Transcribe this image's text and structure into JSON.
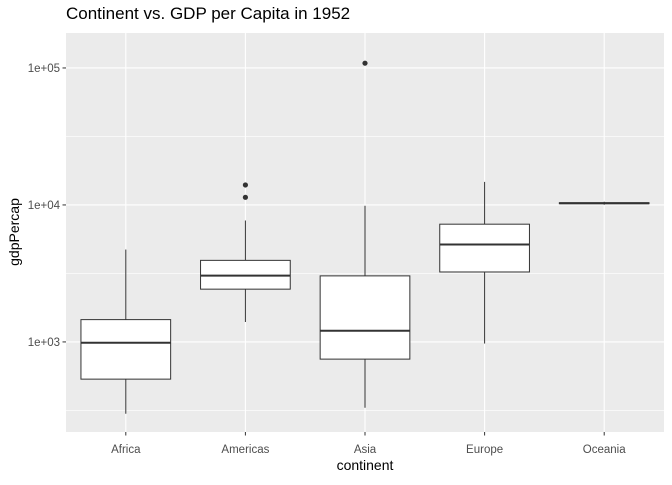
{
  "chart_data": {
    "type": "box",
    "title": "Continent vs. GDP per Capita in 1952",
    "xlabel": "continent",
    "ylabel": "gdpPercap",
    "y_scale": "log10",
    "ylim": [
      220,
      180000
    ],
    "y_ticks": [
      {
        "value": 1000,
        "label": "1e+03"
      },
      {
        "value": 10000,
        "label": "1e+04"
      },
      {
        "value": 100000,
        "label": "1e+05"
      }
    ],
    "categories": [
      "Africa",
      "Americas",
      "Asia",
      "Europe",
      "Oceania"
    ],
    "boxes": [
      {
        "category": "Africa",
        "whisker_low": 299,
        "q1": 535,
        "median": 987,
        "q3": 1455,
        "whisker_high": 4725,
        "outliers": []
      },
      {
        "category": "Americas",
        "whisker_low": 1398,
        "q1": 2428,
        "median": 3048,
        "q3": 3940,
        "whisker_high": 7700,
        "outliers": [
          11367,
          13990
        ]
      },
      {
        "category": "Asia",
        "whisker_low": 331,
        "q1": 749,
        "median": 1207,
        "q3": 3035,
        "whisker_high": 9867,
        "outliers": [
          108382
        ]
      },
      {
        "category": "Europe",
        "whisker_low": 973,
        "q1": 3241,
        "median": 5142,
        "q3": 7237,
        "whisker_high": 14734,
        "outliers": []
      },
      {
        "category": "Oceania",
        "whisker_low": 10040,
        "q1": 10217,
        "median": 10298,
        "q3": 10380,
        "whisker_high": 10557,
        "outliers": []
      }
    ],
    "grid": true,
    "colors": {
      "panel_background": "#ebebeb",
      "grid_major": "#ffffff",
      "box_fill": "#ffffff",
      "box_stroke": "#333333",
      "axis_text": "#4d4d4d"
    }
  }
}
